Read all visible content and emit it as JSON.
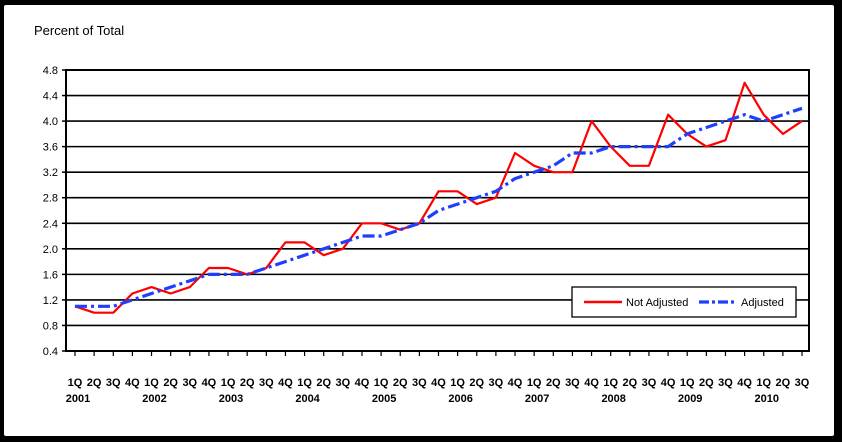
{
  "chart_data": {
    "type": "line",
    "ylabel": "Percent of Total",
    "ylim": [
      0.4,
      4.8
    ],
    "yticks": [
      "4.8",
      "4.4",
      "4.0",
      "3.6",
      "3.2",
      "2.8",
      "2.4",
      "2.0",
      "1.6",
      "1.2",
      "0.8",
      "0.4"
    ],
    "ytick_values": [
      4.8,
      4.4,
      4.0,
      3.6,
      3.2,
      2.8,
      2.4,
      2.0,
      1.6,
      1.2,
      0.8,
      0.4
    ],
    "quarter_labels": [
      "1Q",
      "2Q",
      "3Q",
      "4Q",
      "1Q",
      "2Q",
      "3Q",
      "4Q",
      "1Q",
      "2Q",
      "3Q",
      "4Q",
      "1Q",
      "2Q",
      "3Q",
      "4Q",
      "1Q",
      "2Q",
      "3Q",
      "4Q",
      "1Q",
      "2Q",
      "3Q",
      "4Q",
      "1Q",
      "2Q",
      "3Q",
      "4Q",
      "1Q",
      "2Q",
      "3Q",
      "4Q",
      "1Q",
      "2Q",
      "3Q",
      "4Q",
      "1Q",
      "2Q",
      "3Q"
    ],
    "years": [
      {
        "label": "2001",
        "start_index": 0
      },
      {
        "label": "2002",
        "start_index": 4
      },
      {
        "label": "2003",
        "start_index": 8
      },
      {
        "label": "2004",
        "start_index": 12
      },
      {
        "label": "2005",
        "start_index": 16
      },
      {
        "label": "2006",
        "start_index": 20
      },
      {
        "label": "2007",
        "start_index": 24
      },
      {
        "label": "2008",
        "start_index": 28
      },
      {
        "label": "2009",
        "start_index": 32
      },
      {
        "label": "2010",
        "start_index": 36
      }
    ],
    "grid": true,
    "legend_position": "lower-right",
    "series": [
      {
        "name": "Not Adjusted",
        "color": "#ff0000",
        "style": "solid",
        "values": [
          1.1,
          1.0,
          1.0,
          1.3,
          1.4,
          1.3,
          1.4,
          1.7,
          1.7,
          1.6,
          1.7,
          2.1,
          2.1,
          1.9,
          2.0,
          2.4,
          2.4,
          2.3,
          2.4,
          2.9,
          2.9,
          2.7,
          2.8,
          3.5,
          3.3,
          3.2,
          3.2,
          4.0,
          3.6,
          3.3,
          3.3,
          4.1,
          3.8,
          3.6,
          3.7,
          4.6,
          4.1,
          3.8,
          4.0
        ]
      },
      {
        "name": "Adjusted",
        "color": "#1f3fff",
        "style": "dash-dot",
        "values": [
          1.1,
          1.1,
          1.1,
          1.2,
          1.3,
          1.4,
          1.5,
          1.6,
          1.6,
          1.6,
          1.7,
          1.8,
          1.9,
          2.0,
          2.1,
          2.2,
          2.2,
          2.3,
          2.4,
          2.6,
          2.7,
          2.8,
          2.9,
          3.1,
          3.2,
          3.3,
          3.5,
          3.5,
          3.6,
          3.6,
          3.6,
          3.6,
          3.8,
          3.9,
          4.0,
          4.1,
          4.0,
          4.1,
          4.2
        ]
      }
    ]
  }
}
